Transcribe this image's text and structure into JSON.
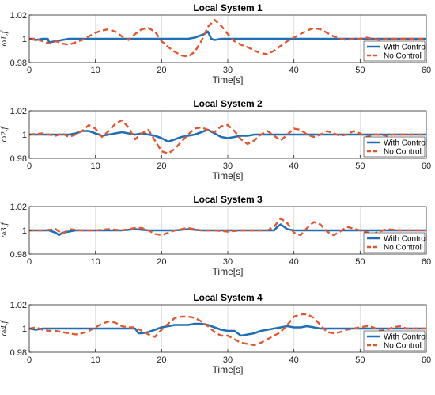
{
  "colors": {
    "with_control": "#1f6fb4",
    "no_control": "#e4572e",
    "axes": "#262626",
    "grid": "#d9d9d9"
  },
  "legend_placement": "bottom-right",
  "chart_data": [
    {
      "type": "line",
      "title": "Local System 1",
      "xlabel": "Time[s]",
      "ylabel": "ω1,f",
      "xlim": [
        0,
        60
      ],
      "ylim": [
        0.98,
        1.02
      ],
      "xticks": [
        "0",
        "10",
        "20",
        "30",
        "40",
        "50",
        "60"
      ],
      "yticks": [
        "0.98",
        "1",
        "1.02"
      ],
      "grid": "vertical",
      "legend": [
        "With Control",
        "No Control"
      ],
      "series": [
        {
          "name": "With Control",
          "style": "solid",
          "x": [
            0,
            1,
            2,
            2.8,
            3,
            4,
            5,
            6,
            8,
            10,
            12,
            14,
            16,
            18,
            20,
            22,
            24,
            25,
            26,
            26.5,
            27,
            27.5,
            28,
            29,
            30,
            32,
            35,
            40,
            45,
            50,
            55,
            60
          ],
          "y": [
            1,
            0.999,
            1,
            1,
            0.997,
            0.998,
            0.999,
            1,
            1,
            1,
            1,
            1,
            1,
            1,
            1,
            1,
            1,
            1.001,
            1.003,
            1.004,
            1.006,
            1.0,
            0.999,
            1,
            1,
            1,
            1,
            1,
            1,
            1,
            1,
            1
          ]
        },
        {
          "name": "No Control",
          "style": "dashed",
          "x": [
            0,
            1,
            2,
            3,
            4,
            5,
            6,
            7,
            8,
            9,
            10,
            11,
            12,
            13,
            14,
            15,
            16,
            17,
            18,
            19,
            20,
            21,
            22,
            23,
            24,
            25,
            26,
            27,
            28,
            29,
            30,
            31,
            32,
            33,
            34,
            35,
            36,
            37,
            38,
            39,
            40,
            41,
            42,
            43,
            44,
            45,
            46,
            47,
            48,
            49,
            50,
            51,
            52,
            53,
            54,
            55,
            56,
            57,
            58,
            59,
            60
          ],
          "y": [
            1,
            1,
            0.998,
            0.996,
            0.998,
            0.996,
            0.995,
            0.997,
            0.999,
            1.002,
            1.005,
            1.007,
            1.008,
            1.006,
            1.002,
            0.999,
            1.004,
            1.008,
            1.009,
            1.006,
            0.998,
            0.993,
            0.989,
            0.986,
            0.985,
            0.989,
            0.998,
            1.01,
            1.016,
            1.011,
            1.004,
            0.998,
            0.995,
            0.993,
            0.99,
            0.988,
            0.987,
            0.99,
            0.994,
            0.998,
            1.001,
            1.004,
            1.007,
            1.009,
            1.008,
            1.005,
            1.002,
            1,
            0.999,
            1,
            1,
            1.001,
            1,
            0.999,
            1,
            1,
            1,
            1,
            1,
            1,
            1
          ]
        }
      ]
    },
    {
      "type": "line",
      "title": "Local System 2",
      "xlabel": "Time[s]",
      "ylabel": "ω2,f",
      "xlim": [
        0,
        60
      ],
      "ylim": [
        0.98,
        1.02
      ],
      "xticks": [
        "0",
        "10",
        "20",
        "30",
        "40",
        "50",
        "60"
      ],
      "yticks": [
        "0.98",
        "1",
        "1.02"
      ],
      "grid": "vertical",
      "legend": [
        "With Control",
        "No Control"
      ],
      "series": [
        {
          "name": "With Control",
          "style": "solid",
          "x": [
            0,
            2,
            4,
            6,
            7,
            8,
            9,
            10,
            11,
            12,
            13,
            14,
            15,
            16,
            17,
            18,
            19,
            20,
            21,
            22,
            23,
            24,
            25,
            26,
            27,
            28,
            29,
            30,
            31,
            32,
            33,
            34,
            35,
            40,
            45,
            50,
            55,
            60
          ],
          "y": [
            1,
            1,
            1,
            1,
            1.001,
            1.003,
            1.003,
            1.001,
            0.999,
            1,
            1.001,
            1.002,
            1.001,
            1,
            1.001,
            1,
            0.999,
            0.997,
            0.994,
            0.996,
            0.998,
            0.999,
            1,
            1.002,
            1.004,
            1.001,
            0.998,
            0.997,
            0.998,
            0.999,
            0.999,
            1,
            1,
            1,
            1,
            1,
            1,
            1
          ]
        },
        {
          "name": "No Control",
          "style": "dashed",
          "x": [
            0,
            2,
            4,
            5,
            6,
            7,
            8,
            9,
            10,
            11,
            12,
            13,
            14,
            15,
            16,
            17,
            18,
            19,
            20,
            21,
            22,
            23,
            24,
            25,
            26,
            27,
            28,
            29,
            30,
            31,
            32,
            33,
            34,
            35,
            36,
            37,
            38,
            39,
            40,
            41,
            42,
            43,
            44,
            45,
            46,
            47,
            48,
            49,
            50,
            51,
            52,
            53,
            54,
            55,
            56,
            57,
            58,
            59,
            60
          ],
          "y": [
            1,
            1.001,
            0.999,
            1.001,
            0.998,
            1,
            1.003,
            1.008,
            1.005,
            0.998,
            1.003,
            1.009,
            1.012,
            1.006,
            0.996,
            1.001,
            1.004,
            0.995,
            0.986,
            0.984,
            0.988,
            0.994,
            1,
            1.005,
            1.006,
            1.004,
            1.002,
            1.007,
            1.008,
            1.003,
            0.996,
            0.992,
            0.995,
            1,
            1.003,
            0.999,
            0.995,
            1,
            1.005,
            1.004,
            1,
            0.998,
            1,
            1.003,
            1.001,
            0.999,
            1,
            1.003,
            1.001,
            0.998,
            1,
            1,
            0.999,
            1,
            1,
            1,
            1,
            1,
            1
          ]
        }
      ]
    },
    {
      "type": "line",
      "title": "Local System 3",
      "xlabel": "Time[s]",
      "ylabel": "ω3,f",
      "xlim": [
        0,
        60
      ],
      "ylim": [
        0.98,
        1.02
      ],
      "xticks": [
        "0",
        "10",
        "20",
        "30",
        "40",
        "50",
        "60"
      ],
      "yticks": [
        "0.98",
        "1",
        "1.02"
      ],
      "grid": "vertical",
      "legend": [
        "With Control",
        "No Control"
      ],
      "series": [
        {
          "name": "With Control",
          "style": "solid",
          "x": [
            0,
            3,
            4,
            4.5,
            5,
            6,
            7,
            8,
            10,
            14,
            16,
            18,
            20,
            22,
            24,
            26,
            28,
            30,
            34,
            36,
            37,
            37.5,
            38,
            38.5,
            39,
            40,
            45,
            50,
            55,
            60
          ],
          "y": [
            1,
            1,
            0.998,
            0.996,
            0.998,
            0.999,
            1,
            1,
            1,
            1,
            1.001,
            1,
            1,
            1,
            1.001,
            1,
            1,
            1,
            1,
            1,
            1,
            1.003,
            1.005,
            1.003,
            1.001,
            1,
            1,
            1,
            1,
            1
          ]
        },
        {
          "name": "No Control",
          "style": "dashed",
          "x": [
            0,
            2,
            4,
            5,
            6,
            8,
            10,
            12,
            14,
            16,
            17,
            18,
            19,
            20,
            21,
            22,
            24,
            26,
            28,
            30,
            32,
            34,
            36,
            37,
            38,
            39,
            40,
            41,
            42,
            43,
            44,
            45,
            46,
            47,
            48,
            50,
            52,
            54,
            56,
            58,
            60
          ],
          "y": [
            1,
            1,
            1.001,
            0.997,
            1.001,
            1,
            1,
            1.001,
            1,
            1.002,
            1.002,
            1,
            0.997,
            0.996,
            0.998,
            1,
            1.002,
            1,
            1,
            0.999,
            1,
            1,
            1,
            1.003,
            1.01,
            1.006,
            0.998,
            0.996,
            1.002,
            1.007,
            1.005,
            0.999,
            0.996,
            0.999,
            1.003,
            1,
            0.997,
            1.001,
            1,
            1,
            1
          ]
        }
      ]
    },
    {
      "type": "line",
      "title": "Local System 4",
      "xlabel": "Time[s]",
      "ylabel": "ω4,f",
      "xlim": [
        0,
        60
      ],
      "ylim": [
        0.98,
        1.02
      ],
      "xticks": [
        "0",
        "10",
        "20",
        "30",
        "40",
        "50",
        "60"
      ],
      "yticks": [
        "0.98",
        "1",
        "1.02"
      ],
      "grid": "vertical",
      "legend": [
        "With Control",
        "No Control"
      ],
      "series": [
        {
          "name": "With Control",
          "style": "solid",
          "x": [
            0,
            1,
            2,
            4,
            6,
            8,
            10,
            12,
            14,
            16,
            16.5,
            17,
            18,
            19,
            20,
            21,
            22,
            23,
            24,
            25,
            26,
            27,
            28,
            29,
            30,
            31,
            32,
            33,
            34,
            35,
            36,
            37,
            38,
            39,
            40,
            41,
            42,
            43,
            44,
            46,
            48,
            50,
            55,
            60
          ],
          "y": [
            1,
            0.999,
            1,
            1,
            1,
            1,
            1,
            1,
            1,
            1,
            0.996,
            0.996,
            0.997,
            0.999,
            1.001,
            1.002,
            1.003,
            1.003,
            1.003,
            1.004,
            1.004,
            1.003,
            1.001,
            0.999,
            0.998,
            0.998,
            0.994,
            0.995,
            0.996,
            0.998,
            0.999,
            1,
            1.001,
            1.002,
            1.001,
            1.001,
            1.002,
            1.001,
            1,
            1,
            1,
            1,
            1,
            1
          ]
        },
        {
          "name": "No Control",
          "style": "dashed",
          "x": [
            0,
            1,
            2,
            3,
            4,
            5,
            6,
            7,
            8,
            9,
            10,
            11,
            12,
            13,
            14,
            15,
            16,
            17,
            18,
            19,
            20,
            21,
            22,
            23,
            24,
            25,
            26,
            27,
            28,
            29,
            30,
            31,
            32,
            33,
            34,
            35,
            36,
            37,
            38,
            39,
            40,
            41,
            42,
            43,
            44,
            45,
            46,
            47,
            48,
            49,
            50,
            51,
            52,
            53,
            54,
            55,
            56,
            57,
            58,
            59,
            60
          ],
          "y": [
            1,
            1.001,
            0.999,
            0.998,
            0.998,
            0.997,
            0.996,
            0.995,
            0.996,
            0.998,
            1.001,
            1.004,
            1.006,
            1.005,
            1.002,
            1.001,
            1.001,
            0.998,
            0.995,
            0.993,
            0.999,
            1.004,
            1.009,
            1.01,
            1.01,
            1.009,
            1.006,
            1.002,
            0.997,
            0.994,
            0.994,
            0.991,
            0.988,
            0.987,
            0.986,
            0.988,
            0.991,
            0.994,
            0.997,
            1.003,
            1.01,
            1.012,
            1.012,
            1.009,
            1.003,
            0.997,
            0.996,
            0.997,
            0.999,
            1,
            1.001,
            1.002,
            1.001,
            0.998,
            0.999,
            1.001,
            1.002,
            1,
            1,
            1,
            1
          ]
        }
      ]
    }
  ]
}
